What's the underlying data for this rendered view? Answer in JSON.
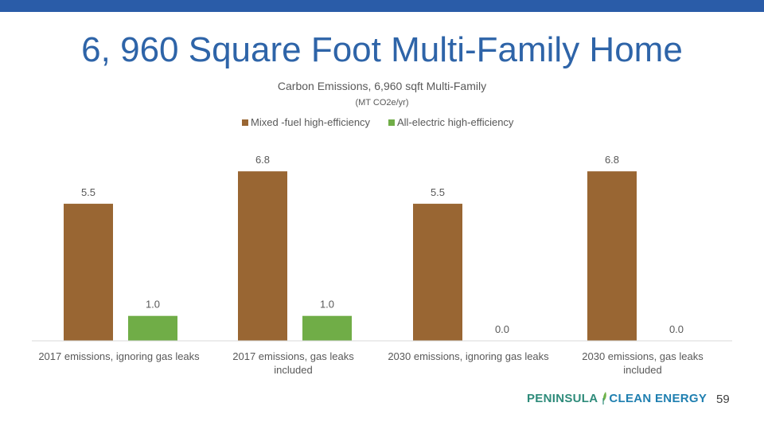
{
  "slide": {
    "title": "6, 960 Square Foot Multi-Family Home",
    "page_number": "59"
  },
  "logo": {
    "part1": "PENINSULA",
    "part2": "CLEAN ENERGY",
    "icon": "leaf-icon"
  },
  "colors": {
    "top_bar": "#2a5ca8",
    "title": "#2e64a8",
    "mixed_fuel": "#996633",
    "all_electric": "#70ad47",
    "logo_green": "#2e8b7a",
    "logo_blue": "#1f7fb0"
  },
  "chart_data": {
    "type": "bar",
    "title": "Carbon Emissions, 6,960 sqft Multi-Family",
    "subtitle": "(MT CO2e/yr)",
    "categories": [
      [
        "2017 emissions, ignoring gas leaks"
      ],
      [
        "2017 emissions, gas leaks",
        "included"
      ],
      [
        "2030 emissions, ignoring gas leaks"
      ],
      [
        "2030 emissions, gas leaks",
        "included"
      ]
    ],
    "series": [
      {
        "name": "Mixed -fuel high-efficiency",
        "color": "#996633",
        "values": [
          5.5,
          6.8,
          5.5,
          6.8
        ],
        "labels": [
          "5.5",
          "6.8",
          "5.5",
          "6.8"
        ]
      },
      {
        "name": "All-electric high-efficiency",
        "color": "#70ad47",
        "values": [
          1.0,
          1.0,
          0.0,
          0.0
        ],
        "labels": [
          "1.0",
          "1.0",
          "0.0",
          "0.0"
        ]
      }
    ],
    "ylim": [
      0,
      7.0
    ],
    "grid": false,
    "legend": "top-center"
  }
}
